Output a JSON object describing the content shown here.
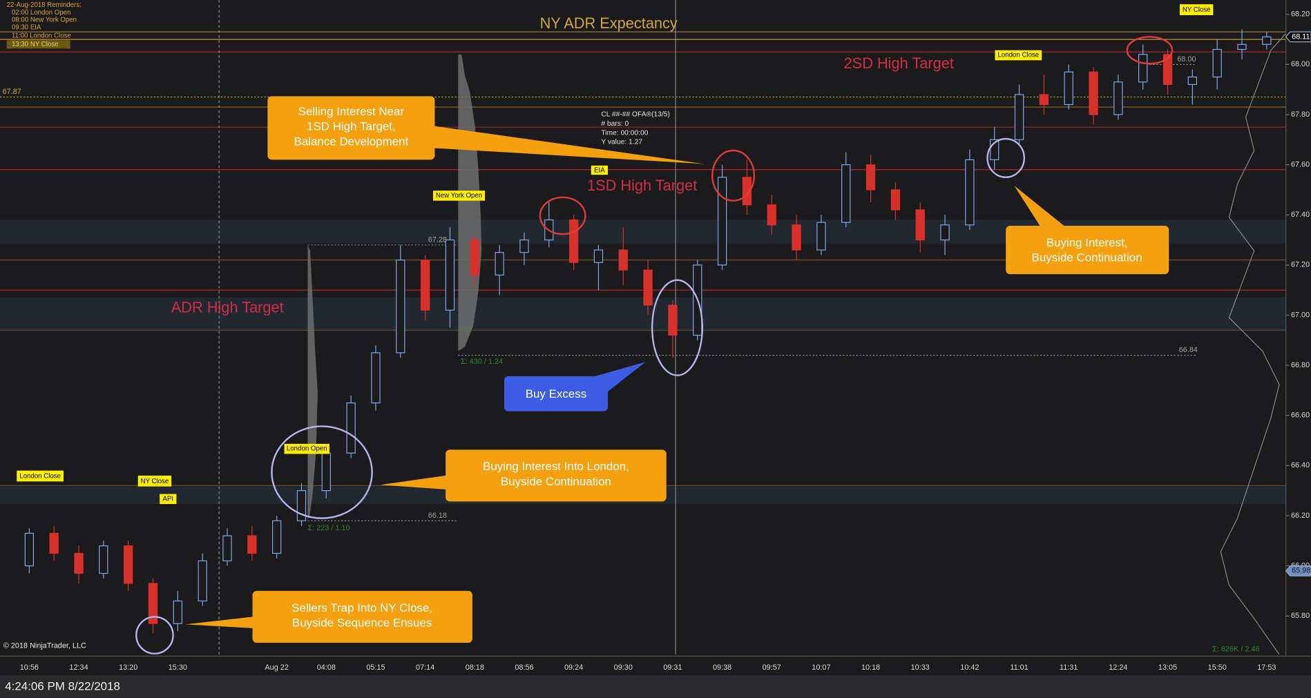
{
  "chart_data": {
    "type": "candlestick",
    "title": "NY ADR Expectancy",
    "annotations": [
      "2SD High Target",
      "1SD High Target",
      "ADR High Target"
    ],
    "reminders": [
      "22-Aug-2018 Reminders:",
      "02:00 London Open",
      "08:00 New York Open",
      "09:30 EIA",
      "11:00 London Close",
      "13:30 NY Close"
    ],
    "sessions": [
      "London Close",
      "NY Close",
      "API",
      "London Open",
      "New York Open",
      "EIA",
      "London Close",
      "NY Close"
    ],
    "callouts": [
      {
        "lines": [
          "Selling Interest Near",
          "1SD High Target,",
          "Balance Development"
        ]
      },
      {
        "lines": [
          "Buying Interest,",
          "Buyside Continuation"
        ]
      },
      {
        "lines": [
          "Buy Excess"
        ]
      },
      {
        "lines": [
          "Buying Interest Into London,",
          "Buyside Continuation"
        ]
      },
      {
        "lines": [
          "Sellers Trap Into NY Close,",
          "Buyside Sequence Ensues"
        ]
      }
    ],
    "info_box": [
      "CL ##-## OFA®(13/5)",
      "# bars:     0",
      "Time:       00:00:00",
      "Y value:    1.27"
    ],
    "stats": [
      "Σ: 430 / 1.24",
      "Σ: 223 / 1.10",
      "Σ: 626K / 2.46"
    ],
    "copyright": "© 2018 NinjaTrader, LLC",
    "status_time": "4:24:06 PM 8/22/2018",
    "categories": [
      "10:56",
      null,
      "12:34",
      null,
      "13:20",
      null,
      "15:30",
      null,
      null,
      null,
      "Aug 22",
      null,
      "04:08",
      null,
      "05:15",
      null,
      "07:14",
      null,
      "08:18",
      null,
      "08:56",
      null,
      "09:24",
      null,
      "09:30",
      null,
      "09:31",
      null,
      "09:38",
      null,
      "09:57",
      null,
      "10:07",
      null,
      "10:18",
      null,
      "10:33",
      null,
      "10:42",
      null,
      "11:01",
      null,
      "11:31",
      null,
      "12:24",
      null,
      "13:05",
      null,
      "15:50",
      null,
      "17:53"
    ],
    "open": [
      66.0,
      66.13,
      66.05,
      65.97,
      66.08,
      65.93,
      65.77,
      65.86,
      66.02,
      66.12,
      66.05,
      66.18,
      66.3,
      66.45,
      66.65,
      66.85,
      67.22,
      67.02,
      67.3,
      67.16,
      67.25,
      67.3,
      67.38,
      67.21,
      67.26,
      67.18,
      67.04,
      66.92,
      67.2,
      67.55,
      67.44,
      67.36,
      67.26,
      67.37,
      67.6,
      67.5,
      67.42,
      67.3,
      67.36,
      67.62,
      67.7,
      67.88,
      67.84,
      67.97,
      67.8,
      67.93,
      68.04,
      67.92,
      67.95,
      68.06,
      68.08
    ],
    "high": [
      66.15,
      66.16,
      66.08,
      66.1,
      66.1,
      65.95,
      65.9,
      66.05,
      66.15,
      66.16,
      66.2,
      66.33,
      66.48,
      66.68,
      66.88,
      67.28,
      67.24,
      67.35,
      67.32,
      67.28,
      67.33,
      67.45,
      67.4,
      67.28,
      67.35,
      67.22,
      67.06,
      67.22,
      67.6,
      67.62,
      67.48,
      67.4,
      67.4,
      67.65,
      67.64,
      67.53,
      67.45,
      67.4,
      67.66,
      67.75,
      67.92,
      67.96,
      68.0,
      67.99,
      67.96,
      68.08,
      68.06,
      67.98,
      68.1,
      68.14,
      68.13
    ],
    "low": [
      65.97,
      66.02,
      65.93,
      65.95,
      65.9,
      65.73,
      65.74,
      65.84,
      66.0,
      66.02,
      66.03,
      66.16,
      66.27,
      66.43,
      66.62,
      66.83,
      66.98,
      66.95,
      67.12,
      67.08,
      67.2,
      67.27,
      67.18,
      67.1,
      67.12,
      67.0,
      66.83,
      66.9,
      67.18,
      67.4,
      67.32,
      67.22,
      67.24,
      67.35,
      67.45,
      67.38,
      67.25,
      67.24,
      67.34,
      67.58,
      67.68,
      67.8,
      67.82,
      67.76,
      67.78,
      67.9,
      67.88,
      67.84,
      67.9,
      68.02,
      68.06
    ],
    "close": [
      66.13,
      66.05,
      65.97,
      66.08,
      65.93,
      65.77,
      65.86,
      66.02,
      66.12,
      66.05,
      66.18,
      66.3,
      66.45,
      66.65,
      66.85,
      67.22,
      67.02,
      67.3,
      67.16,
      67.25,
      67.3,
      67.38,
      67.21,
      67.26,
      67.18,
      67.04,
      66.92,
      67.2,
      67.55,
      67.44,
      67.36,
      67.26,
      67.37,
      67.6,
      67.5,
      67.42,
      67.3,
      67.36,
      67.62,
      67.7,
      67.88,
      67.84,
      67.97,
      67.8,
      67.93,
      68.04,
      67.92,
      67.95,
      68.06,
      68.08,
      68.11
    ],
    "up_color": "#7ea6e8",
    "down_color": "#d8302a",
    "ylim": [
      65.64,
      68.25
    ],
    "yticks": [
      {
        "value": 65.8,
        "label": "65.80"
      },
      {
        "value": 66.0,
        "label": "66.00"
      },
      {
        "value": 66.2,
        "label": "66.20"
      },
      {
        "value": 66.4,
        "label": "66.40"
      },
      {
        "value": 66.6,
        "label": "66.60"
      },
      {
        "value": 66.8,
        "label": "66.80"
      },
      {
        "value": 67.0,
        "label": "67.00"
      },
      {
        "value": 67.2,
        "label": "67.20"
      },
      {
        "value": 67.4,
        "label": "67.40"
      },
      {
        "value": 67.6,
        "label": "67.60"
      },
      {
        "value": 67.8,
        "label": "67.80"
      },
      {
        "value": 68.0,
        "label": "68.00"
      },
      {
        "value": 68.2,
        "label": "68.20"
      }
    ],
    "grid": false,
    "levels": [
      {
        "value": 68.13,
        "color": "#b8913a"
      },
      {
        "value": 68.1,
        "color": "#e0a030"
      },
      {
        "value": 68.05,
        "color": "#c0282d"
      },
      {
        "value": 67.83,
        "color": "#9a6a28"
      },
      {
        "value": 67.75,
        "color": "#a03030"
      },
      {
        "value": 67.58,
        "color": "#c0282d"
      },
      {
        "value": 67.22,
        "color": "#7a5a24"
      },
      {
        "value": 67.1,
        "color": "#c0282d"
      },
      {
        "value": 66.94,
        "color": "#6a5224"
      },
      {
        "value": 66.32,
        "color": "#6a5224"
      }
    ],
    "price_tags": [
      {
        "value": 67.87,
        "label": "67.87"
      },
      {
        "value": 67.28,
        "label": "67.28"
      },
      {
        "value": 66.84,
        "label": "66.84"
      },
      {
        "value": 66.18,
        "label": "66.18"
      },
      {
        "value": 68.0,
        "label": "68.00"
      }
    ],
    "last_price": 68.11,
    "marker_price": 65.98
  }
}
